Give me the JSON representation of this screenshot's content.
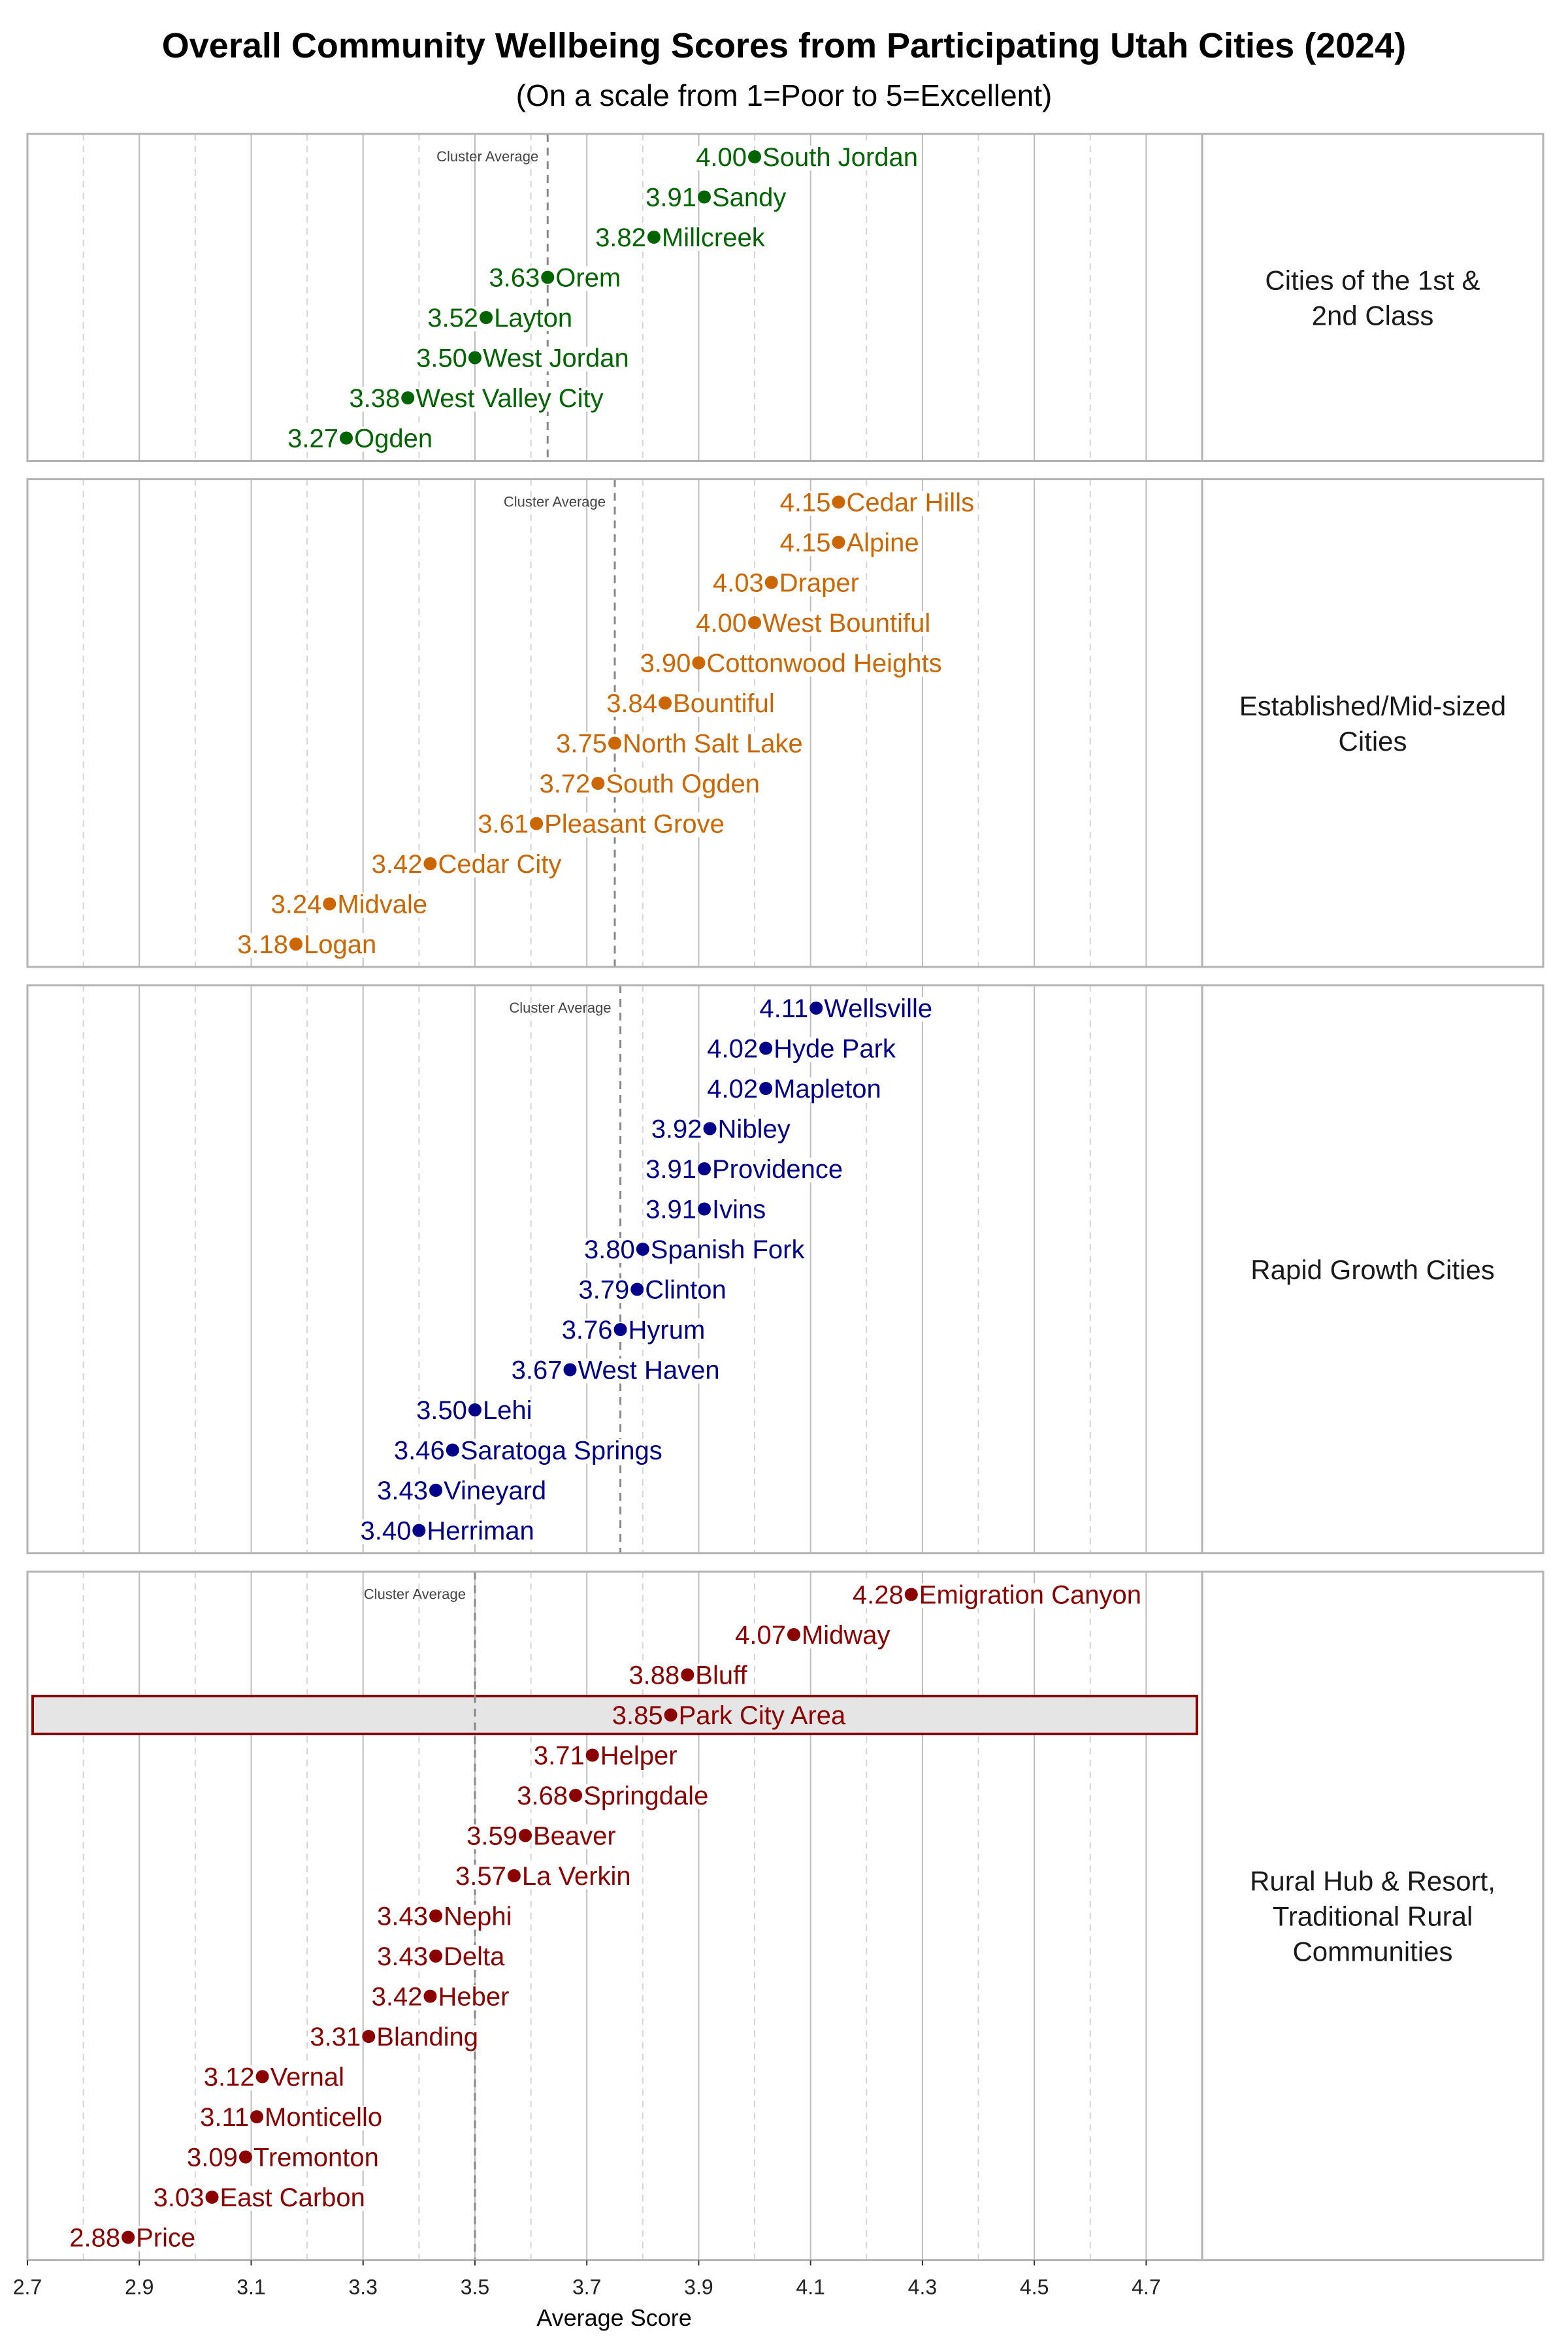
{
  "chart_data": {
    "type": "scatter",
    "title": "Overall Community Wellbeing Scores from Participating Utah Cities (2024)",
    "subtitle": "(On a scale from 1=Poor to 5=Excellent)",
    "xlabel": "Average Score",
    "xlim": [
      2.7,
      4.8
    ],
    "x_ticks": [
      "2.7",
      "2.9",
      "3.1",
      "3.3",
      "3.5",
      "3.7",
      "3.9",
      "4.1",
      "4.3",
      "4.5",
      "4.7"
    ],
    "grid": true,
    "average_line_label": "Cluster Average",
    "highlighted_city": "Park City Area",
    "highlight_color": "#8b0000",
    "panels": [
      {
        "name": "Cities of the 1st & 2nd Class",
        "name_lines": [
          "Cities of the 1st &",
          "2nd Class"
        ],
        "color": "#006400",
        "cluster_average": 3.63,
        "points": [
          {
            "city": "South Jordan",
            "value": 4.0,
            "label": "4.00"
          },
          {
            "city": "Sandy",
            "value": 3.91,
            "label": "3.91"
          },
          {
            "city": "Millcreek",
            "value": 3.82,
            "label": "3.82"
          },
          {
            "city": "Orem",
            "value": 3.63,
            "label": "3.63"
          },
          {
            "city": "Layton",
            "value": 3.52,
            "label": "3.52"
          },
          {
            "city": "West Jordan",
            "value": 3.5,
            "label": "3.50"
          },
          {
            "city": "West Valley City",
            "value": 3.38,
            "label": "3.38"
          },
          {
            "city": "Ogden",
            "value": 3.27,
            "label": "3.27"
          }
        ]
      },
      {
        "name": "Established/Mid-sized Cities",
        "name_lines": [
          "Established/Mid-sized",
          "Cities"
        ],
        "color": "#cc6600",
        "cluster_average": 3.75,
        "points": [
          {
            "city": "Cedar Hills",
            "value": 4.15,
            "label": "4.15"
          },
          {
            "city": "Alpine",
            "value": 4.15,
            "label": "4.15"
          },
          {
            "city": "Draper",
            "value": 4.03,
            "label": "4.03"
          },
          {
            "city": "West Bountiful",
            "value": 4.0,
            "label": "4.00"
          },
          {
            "city": "Cottonwood Heights",
            "value": 3.9,
            "label": "3.90"
          },
          {
            "city": "Bountiful",
            "value": 3.84,
            "label": "3.84"
          },
          {
            "city": "North Salt Lake",
            "value": 3.75,
            "label": "3.75"
          },
          {
            "city": "South Ogden",
            "value": 3.72,
            "label": "3.72"
          },
          {
            "city": "Pleasant Grove",
            "value": 3.61,
            "label": "3.61"
          },
          {
            "city": "Cedar City",
            "value": 3.42,
            "label": "3.42"
          },
          {
            "city": "Midvale",
            "value": 3.24,
            "label": "3.24"
          },
          {
            "city": "Logan",
            "value": 3.18,
            "label": "3.18"
          }
        ]
      },
      {
        "name": "Rapid Growth Cities",
        "name_lines": [
          "Rapid Growth Cities"
        ],
        "color": "#00008b",
        "cluster_average": 3.76,
        "points": [
          {
            "city": "Wellsville",
            "value": 4.11,
            "label": "4.11"
          },
          {
            "city": "Hyde Park",
            "value": 4.02,
            "label": "4.02"
          },
          {
            "city": "Mapleton",
            "value": 4.02,
            "label": "4.02"
          },
          {
            "city": "Nibley",
            "value": 3.92,
            "label": "3.92"
          },
          {
            "city": "Providence",
            "value": 3.91,
            "label": "3.91"
          },
          {
            "city": "Ivins",
            "value": 3.91,
            "label": "3.91"
          },
          {
            "city": "Spanish Fork",
            "value": 3.8,
            "label": "3.80"
          },
          {
            "city": "Clinton",
            "value": 3.79,
            "label": "3.79"
          },
          {
            "city": "Hyrum",
            "value": 3.76,
            "label": "3.76"
          },
          {
            "city": "West Haven",
            "value": 3.67,
            "label": "3.67"
          },
          {
            "city": "Lehi",
            "value": 3.5,
            "label": "3.50"
          },
          {
            "city": "Saratoga Springs",
            "value": 3.46,
            "label": "3.46"
          },
          {
            "city": "Vineyard",
            "value": 3.43,
            "label": "3.43"
          },
          {
            "city": "Herriman",
            "value": 3.4,
            "label": "3.40"
          }
        ]
      },
      {
        "name": "Rural Hub & Resort, Traditional Rural Communities",
        "name_lines": [
          "Rural Hub & Resort,",
          "Traditional Rural",
          "Communities"
        ],
        "color": "#8b0000",
        "cluster_average": 3.5,
        "points": [
          {
            "city": "Emigration Canyon",
            "value": 4.28,
            "label": "4.28"
          },
          {
            "city": "Midway",
            "value": 4.07,
            "label": "4.07"
          },
          {
            "city": "Bluff",
            "value": 3.88,
            "label": "3.88"
          },
          {
            "city": "Park City Area",
            "value": 3.85,
            "label": "3.85"
          },
          {
            "city": "Helper",
            "value": 3.71,
            "label": "3.71"
          },
          {
            "city": "Springdale",
            "value": 3.68,
            "label": "3.68"
          },
          {
            "city": "Beaver",
            "value": 3.59,
            "label": "3.59"
          },
          {
            "city": "La Verkin",
            "value": 3.57,
            "label": "3.57"
          },
          {
            "city": "Nephi",
            "value": 3.43,
            "label": "3.43"
          },
          {
            "city": "Delta",
            "value": 3.43,
            "label": "3.43"
          },
          {
            "city": "Heber",
            "value": 3.42,
            "label": "3.42"
          },
          {
            "city": "Blanding",
            "value": 3.31,
            "label": "3.31"
          },
          {
            "city": "Vernal",
            "value": 3.12,
            "label": "3.12"
          },
          {
            "city": "Monticello",
            "value": 3.11,
            "label": "3.11"
          },
          {
            "city": "Tremonton",
            "value": 3.09,
            "label": "3.09"
          },
          {
            "city": "East Carbon",
            "value": 3.03,
            "label": "3.03"
          },
          {
            "city": "Price",
            "value": 2.88,
            "label": "2.88"
          }
        ]
      }
    ]
  }
}
